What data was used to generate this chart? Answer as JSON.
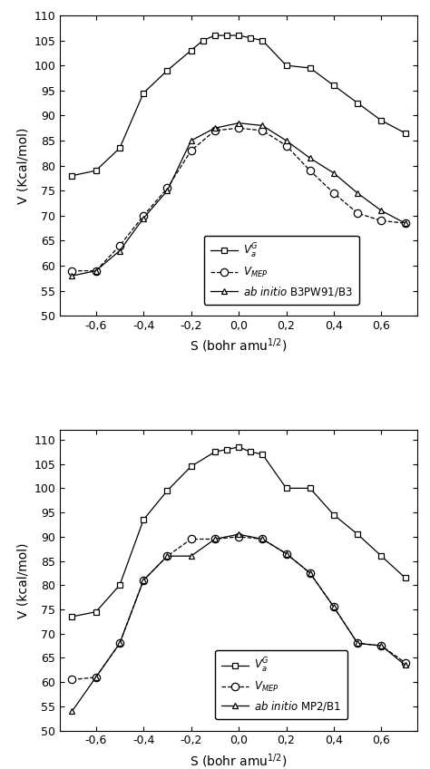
{
  "plot1": {
    "ylabel": "V (Kcal/mol)",
    "xlabel": "S (bohr amu$^{1/2}$)",
    "ylim": [
      50,
      110
    ],
    "yticks": [
      50,
      55,
      60,
      65,
      70,
      75,
      80,
      85,
      90,
      95,
      100,
      105,
      110
    ],
    "xlim": [
      -0.75,
      0.75
    ],
    "xticks": [
      -0.6,
      -0.4,
      -0.2,
      0.0,
      0.2,
      0.4,
      0.6
    ],
    "Va_G": {
      "s": [
        -0.7,
        -0.6,
        -0.5,
        -0.4,
        -0.3,
        -0.2,
        -0.15,
        -0.1,
        -0.05,
        0.0,
        0.05,
        0.1,
        0.2,
        0.3,
        0.4,
        0.5,
        0.6,
        0.7
      ],
      "v": [
        78.0,
        79.0,
        83.5,
        94.5,
        99.0,
        103.0,
        105.0,
        106.0,
        106.0,
        106.0,
        105.5,
        105.0,
        100.0,
        99.5,
        96.0,
        92.5,
        89.0,
        86.5
      ]
    },
    "Vmep": {
      "s": [
        -0.7,
        -0.6,
        -0.5,
        -0.4,
        -0.3,
        -0.2,
        -0.1,
        0.0,
        0.1,
        0.2,
        0.3,
        0.4,
        0.5,
        0.6,
        0.7
      ],
      "v": [
        59.0,
        59.0,
        64.0,
        70.0,
        75.5,
        83.0,
        87.0,
        87.5,
        87.0,
        84.0,
        79.0,
        74.5,
        70.5,
        69.0,
        68.5
      ]
    },
    "ab_initio": {
      "s": [
        -0.7,
        -0.6,
        -0.5,
        -0.4,
        -0.3,
        -0.2,
        -0.1,
        0.0,
        0.1,
        0.2,
        0.3,
        0.4,
        0.5,
        0.6,
        0.7
      ],
      "v": [
        58.0,
        59.0,
        63.0,
        69.5,
        75.0,
        85.0,
        87.5,
        88.5,
        88.0,
        85.0,
        81.5,
        78.5,
        74.5,
        71.0,
        68.5
      ]
    },
    "legend0": "$V_a^G$",
    "legend1": "$V_{MEP}$",
    "legend2_italic": "ab initio",
    "legend2_normal": " B3PW91/B3"
  },
  "plot2": {
    "ylabel": "V (kcal/mol)",
    "xlabel": "S (bohr amu$^{1/2}$)",
    "ylim": [
      50,
      112
    ],
    "yticks": [
      50,
      55,
      60,
      65,
      70,
      75,
      80,
      85,
      90,
      95,
      100,
      105,
      110
    ],
    "xlim": [
      -0.75,
      0.75
    ],
    "xticks": [
      -0.6,
      -0.4,
      -0.2,
      0.0,
      0.2,
      0.4,
      0.6
    ],
    "Va_G": {
      "s": [
        -0.7,
        -0.6,
        -0.5,
        -0.4,
        -0.3,
        -0.2,
        -0.1,
        -0.05,
        0.0,
        0.05,
        0.1,
        0.2,
        0.3,
        0.4,
        0.5,
        0.6,
        0.7
      ],
      "v": [
        73.5,
        74.5,
        80.0,
        93.5,
        99.5,
        104.5,
        107.5,
        108.0,
        108.5,
        107.5,
        107.0,
        100.0,
        100.0,
        94.5,
        90.5,
        86.0,
        81.5
      ]
    },
    "Vmep": {
      "s": [
        -0.7,
        -0.6,
        -0.5,
        -0.4,
        -0.3,
        -0.2,
        -0.1,
        0.0,
        0.1,
        0.2,
        0.3,
        0.4,
        0.5,
        0.6,
        0.7
      ],
      "v": [
        60.5,
        61.0,
        68.0,
        81.0,
        86.0,
        89.5,
        89.5,
        90.0,
        89.5,
        86.5,
        82.5,
        75.5,
        68.0,
        67.5,
        64.0
      ]
    },
    "ab_initio": {
      "s": [
        -0.7,
        -0.6,
        -0.5,
        -0.4,
        -0.3,
        -0.2,
        -0.1,
        0.0,
        0.1,
        0.2,
        0.3,
        0.4,
        0.5,
        0.6,
        0.7
      ],
      "v": [
        54.0,
        61.0,
        68.0,
        81.0,
        86.0,
        86.0,
        89.5,
        90.5,
        89.5,
        86.5,
        82.5,
        75.5,
        68.0,
        67.5,
        63.5
      ]
    },
    "legend0": "$V_a^G$",
    "legend1": "$V_{MEP}$",
    "legend2_italic": "ab initio",
    "legend2_normal": " MP2/B1"
  }
}
